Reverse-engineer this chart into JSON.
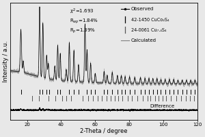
{
  "xlabel": "2-Theta / degree",
  "ylabel": "Intensity / a.u.",
  "xlim": [
    10,
    120
  ],
  "background_color": "#e8e8e8",
  "chi2": "1.693",
  "Rwp": "1.84%",
  "Rp": "1.39%",
  "legend_observed": "Observed",
  "legend_phase1": "42-1450 CuCo₂S₄",
  "legend_phase2": "24-0061 Cu₇.₄S₄",
  "legend_calc": "Calculated",
  "xrd_peaks_phase1": [
    16.4,
    27.5,
    29.2,
    31.5,
    33.0,
    38.0,
    39.5,
    44.8,
    47.5,
    50.3,
    55.1,
    57.3,
    60.0,
    65.2,
    67.0,
    70.0,
    73.0,
    75.3,
    77.5,
    80.1,
    83.2,
    86.5,
    89.2,
    91.5,
    93.8,
    96.2,
    98.5,
    101.0,
    103.5,
    106.0,
    108.5,
    111.0,
    113.5,
    116.0,
    118.5
  ],
  "xrd_peaks_phase2": [
    23.0,
    27.0,
    32.5,
    36.5,
    40.5,
    43.0,
    46.0,
    52.5,
    55.8,
    58.5,
    61.5,
    64.0,
    66.5,
    69.0,
    71.5,
    73.5,
    76.0,
    79.0,
    81.5,
    84.5,
    88.0,
    90.5,
    92.5,
    95.0,
    97.0,
    99.5,
    101.5,
    104.5,
    107.5,
    110.5,
    113.0,
    115.5,
    118.0
  ],
  "noise_seed": 42,
  "tick_fontsize": 5,
  "label_fontsize": 6,
  "annotation_fontsize": 5
}
